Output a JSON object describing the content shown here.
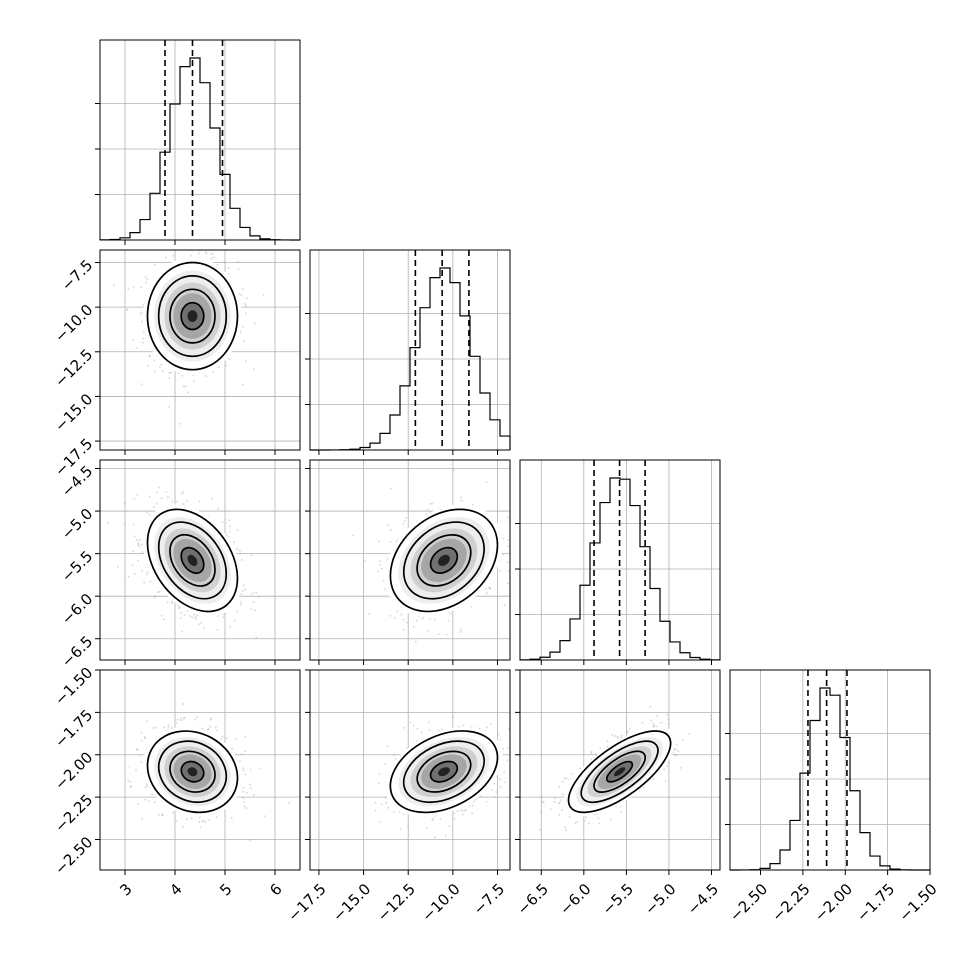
{
  "chart_data": {
    "type": "corner",
    "parameters": [
      {
        "ticks": [
          3,
          4,
          5,
          6
        ],
        "tick_labels": [
          "3",
          "4",
          "5",
          "6"
        ],
        "range": [
          2.5,
          6.5
        ],
        "quantiles": [
          3.8,
          4.35,
          4.95
        ],
        "mean": 4.35,
        "sd": 0.45
      },
      {
        "ticks": [
          -17.5,
          -15.0,
          -12.5,
          -10.0,
          -7.5
        ],
        "tick_labels": [
          "−17.5",
          "−15.0",
          "−12.5",
          "−10.0",
          "−7.5"
        ],
        "range": [
          -18,
          -6.8
        ],
        "quantiles": [
          -12.1,
          -10.6,
          -9.1
        ],
        "mean": -10.5,
        "sd": 1.5
      },
      {
        "ticks": [
          -6.5,
          -6.0,
          -5.5,
          -5.0,
          -4.5
        ],
        "tick_labels": [
          "−6.5",
          "−6.0",
          "−5.5",
          "−5.0",
          "−4.5"
        ],
        "range": [
          -6.75,
          -4.4
        ],
        "quantiles": [
          -5.88,
          -5.58,
          -5.28
        ],
        "mean": -5.58,
        "sd": 0.3
      },
      {
        "ticks": [
          -2.5,
          -2.25,
          -2.0,
          -1.75,
          -1.5
        ],
        "tick_labels": [
          "−2.50",
          "−2.25",
          "−2.00",
          "−1.75",
          "−1.50"
        ],
        "range": [
          -2.68,
          -1.5
        ],
        "quantiles": [
          -2.22,
          -2.11,
          -1.99
        ],
        "mean": -2.1,
        "sd": 0.12
      }
    ],
    "correlations": [
      [
        1,
        0,
        -0.35,
        -0.15
      ],
      [
        0,
        1,
        0.3,
        0.35
      ],
      [
        -0.35,
        0.3,
        1,
        0.7
      ],
      [
        -0.15,
        0.35,
        0.7,
        1
      ]
    ],
    "contour_levels_sigma": [
      0.5,
      1,
      1.5,
      2
    ],
    "quantile_line_style": "dashed",
    "grid": true,
    "colors": {
      "ink": "#000000",
      "grid": "#b0b0b0",
      "scatter": "#9a9a9a",
      "hist2d_dark": "#222222"
    }
  }
}
